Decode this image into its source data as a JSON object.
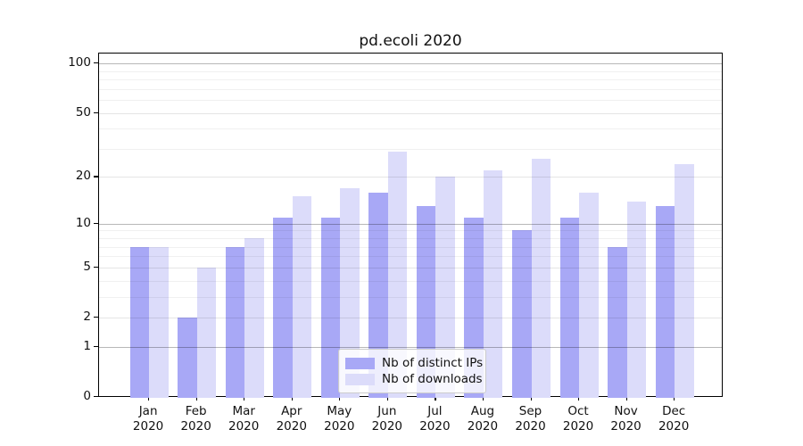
{
  "title": "pd.ecoli 2020",
  "chart_data": {
    "type": "bar",
    "title": "pd.ecoli 2020",
    "categories": [
      "Jan",
      "Feb",
      "Mar",
      "Apr",
      "May",
      "Jun",
      "Jul",
      "Aug",
      "Sep",
      "Oct",
      "Nov",
      "Dec"
    ],
    "category_year": "2020",
    "series": [
      {
        "name": "Nb of distinct IPs",
        "color": "#a8a8f6",
        "values": [
          7,
          2,
          7,
          11,
          11,
          16,
          13,
          11,
          9,
          11,
          7,
          13
        ]
      },
      {
        "name": "Nb of downloads",
        "color": "#dcdcfa",
        "values": [
          7,
          5,
          8,
          15,
          17,
          29,
          20,
          22,
          26,
          16,
          14,
          24
        ]
      }
    ],
    "xlabel": "",
    "ylabel": "",
    "yscale": "log1p",
    "ylim": [
      0,
      115
    ],
    "yticks": [
      0,
      1,
      2,
      5,
      10,
      20,
      50,
      100
    ],
    "yticks_emphasized": [
      1,
      10,
      100
    ],
    "minor_yticks": [
      3,
      4,
      6,
      7,
      8,
      9,
      30,
      40,
      60,
      70,
      80,
      90
    ],
    "grid": "horizontal major+minor, drawn above bars",
    "legend_position": "lower center"
  },
  "legend": {
    "items": [
      {
        "label": "Nb of distinct IPs",
        "color": "#a8a8f6"
      },
      {
        "label": "Nb of downloads",
        "color": "#dcdcfa"
      }
    ]
  }
}
